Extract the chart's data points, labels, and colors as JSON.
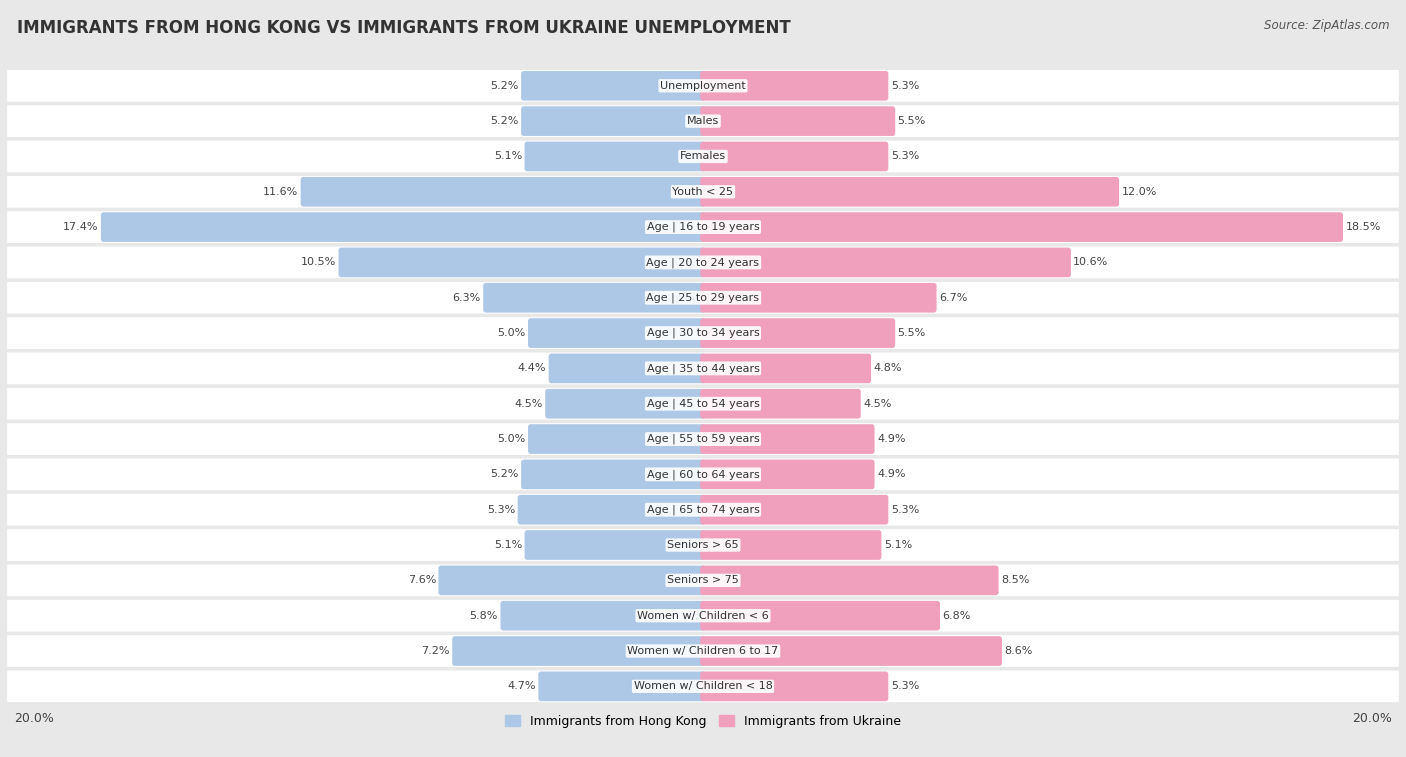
{
  "title": "IMMIGRANTS FROM HONG KONG VS IMMIGRANTS FROM UKRAINE UNEMPLOYMENT",
  "source": "Source: ZipAtlas.com",
  "categories": [
    "Unemployment",
    "Males",
    "Females",
    "Youth < 25",
    "Age | 16 to 19 years",
    "Age | 20 to 24 years",
    "Age | 25 to 29 years",
    "Age | 30 to 34 years",
    "Age | 35 to 44 years",
    "Age | 45 to 54 years",
    "Age | 55 to 59 years",
    "Age | 60 to 64 years",
    "Age | 65 to 74 years",
    "Seniors > 65",
    "Seniors > 75",
    "Women w/ Children < 6",
    "Women w/ Children 6 to 17",
    "Women w/ Children < 18"
  ],
  "hk_values": [
    5.2,
    5.2,
    5.1,
    11.6,
    17.4,
    10.5,
    6.3,
    5.0,
    4.4,
    4.5,
    5.0,
    5.2,
    5.3,
    5.1,
    7.6,
    5.8,
    7.2,
    4.7
  ],
  "ua_values": [
    5.3,
    5.5,
    5.3,
    12.0,
    18.5,
    10.6,
    6.7,
    5.5,
    4.8,
    4.5,
    4.9,
    4.9,
    5.3,
    5.1,
    8.5,
    6.8,
    8.6,
    5.3
  ],
  "hk_color": "#adc8e6",
  "ua_color": "#f0a0bc",
  "axis_max": 20.0,
  "bar_height": 0.68,
  "bg_color": "#e8e8e8",
  "title_fontsize": 12,
  "source_fontsize": 8.5,
  "axis_label_fontsize": 9,
  "category_fontsize": 8,
  "value_fontsize": 8
}
